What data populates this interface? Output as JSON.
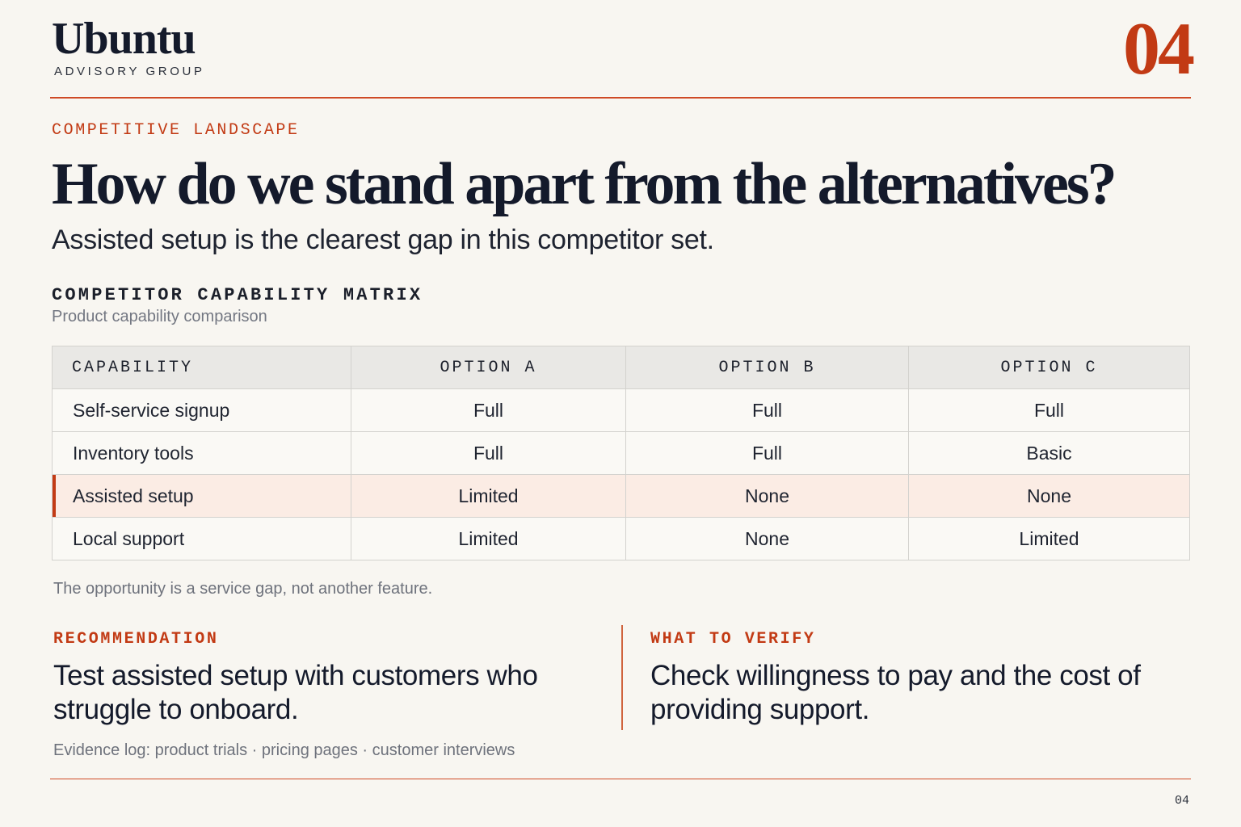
{
  "brand": {
    "name": "Ubuntu",
    "tagline": "ADVISORY GROUP"
  },
  "page_number": "04",
  "section": {
    "eyebrow": "COMPETITIVE LANDSCAPE"
  },
  "headline": "How do we stand apart from the alternatives?",
  "subhead": "Assisted setup is the clearest gap in this competitor set.",
  "matrix": {
    "title": "COMPETITOR CAPABILITY MATRIX",
    "subtitle": "Product capability comparison",
    "headers": [
      "CAPABILITY",
      "OPTION A",
      "OPTION B",
      "OPTION C"
    ],
    "rows": [
      [
        "Self-service signup",
        "Full",
        "Full",
        "Full"
      ],
      [
        "Inventory tools",
        "Full",
        "Full",
        "Basic"
      ],
      [
        "Assisted setup",
        "Limited",
        "None",
        "None"
      ],
      [
        "Local support",
        "Limited",
        "None",
        "Limited"
      ]
    ],
    "note": "The opportunity is a service gap, not another feature."
  },
  "recommendation": {
    "label": "RECOMMENDATION",
    "text": "Test assisted setup with customers who struggle to onboard."
  },
  "verify": {
    "label": "WHAT TO VERIFY",
    "text": "Check willingness to pay and the cost of providing support."
  },
  "evidence": "Evidence log: product trials · pricing pages · customer interviews",
  "footer": {
    "page": "04"
  },
  "colors": {
    "accent": "#c23a14",
    "highlight_row": "#fbece4",
    "ink": "#141a2b"
  }
}
